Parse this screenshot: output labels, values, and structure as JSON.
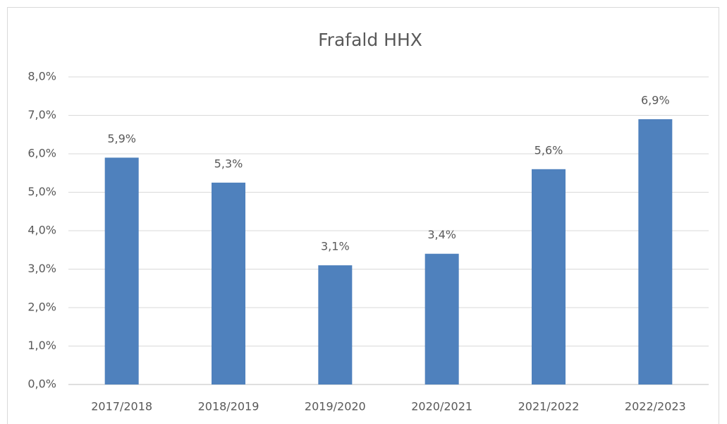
{
  "chart_data": {
    "type": "bar",
    "title": "Frafald HHX",
    "categories": [
      "2017/2018",
      "2018/2019",
      "2019/2020",
      "2020/2021",
      "2021/2022",
      "2022/2023"
    ],
    "values": [
      5.9,
      5.25,
      3.1,
      3.4,
      5.6,
      6.9
    ],
    "value_labels": [
      "5,9%",
      "5,3%",
      "3,1%",
      "3,4%",
      "5,6%",
      "6,9%"
    ],
    "color": "#4f81bd",
    "ylim": [
      0,
      8
    ],
    "yticks": [
      {
        "value": 0,
        "label": "0,0%"
      },
      {
        "value": 1,
        "label": "1,0%"
      },
      {
        "value": 2,
        "label": "2,0%"
      },
      {
        "value": 3,
        "label": "3,0%"
      },
      {
        "value": 4,
        "label": "4,0%"
      },
      {
        "value": 5,
        "label": "5,0%"
      },
      {
        "value": 6,
        "label": "6,0%"
      },
      {
        "value": 7,
        "label": "7,0%"
      },
      {
        "value": 8,
        "label": "8,0%"
      }
    ],
    "grid": true
  }
}
